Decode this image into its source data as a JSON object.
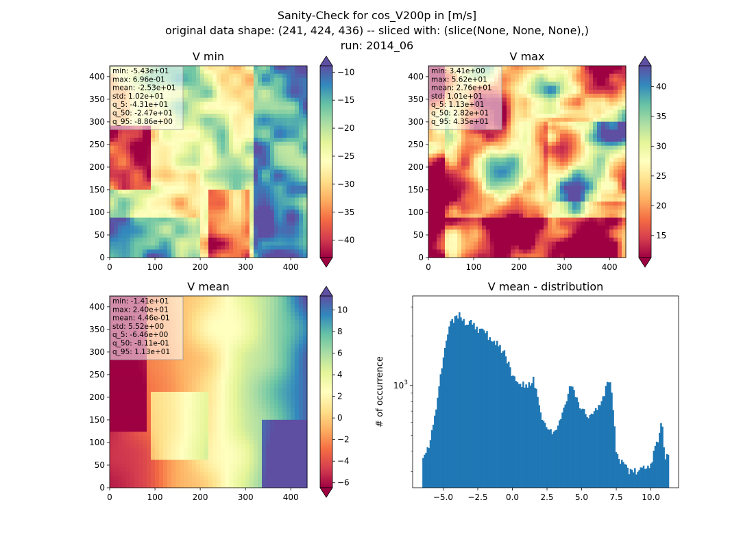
{
  "suptitle": {
    "line1": "Sanity-Check for cos_V200p in [m/s]",
    "line2": "original data shape: (241, 424, 436) -- sliced with: (slice(None, None, None),)",
    "line3": "run: 2014_06"
  },
  "chart_data": [
    {
      "type": "heatmap",
      "title": "V min",
      "x_ticks": [
        0,
        100,
        200,
        300,
        400
      ],
      "y_ticks": [
        0,
        50,
        100,
        150,
        200,
        250,
        300,
        350,
        400
      ],
      "xlim": [
        0,
        436
      ],
      "ylim": [
        0,
        424
      ],
      "colormap": "Spectral",
      "colorbar": {
        "min": -43.1,
        "max": -8.86,
        "ticks": [
          -40,
          -35,
          -30,
          -25,
          -20,
          -15,
          -10
        ],
        "extend": "both"
      },
      "stats": [
        "min: -5.43e+01",
        "max: 6.96e-01",
        "mean: -2.53e+01",
        "std: 1.02e+01",
        "q_5: -4.31e+01",
        "q_50: -2.47e+01",
        "q_95: -8.86e+00"
      ]
    },
    {
      "type": "heatmap",
      "title": "V max",
      "x_ticks": [
        0,
        100,
        200,
        300,
        400
      ],
      "y_ticks": [
        0,
        50,
        100,
        150,
        200,
        250,
        300,
        350,
        400
      ],
      "xlim": [
        0,
        436
      ],
      "ylim": [
        0,
        424
      ],
      "colormap": "Spectral",
      "colorbar": {
        "min": 11.3,
        "max": 43.5,
        "ticks": [
          15,
          20,
          25,
          30,
          35,
          40
        ],
        "extend": "both"
      },
      "stats": [
        "min: 3.41e+00",
        "max: 5.62e+01",
        "mean: 2.76e+01",
        "std: 1.01e+01",
        "q_5: 1.13e+01",
        "q_50: 2.82e+01",
        "q_95: 4.35e+01"
      ]
    },
    {
      "type": "heatmap",
      "title": "V mean",
      "x_ticks": [
        0,
        100,
        200,
        300,
        400
      ],
      "y_ticks": [
        0,
        50,
        100,
        150,
        200,
        250,
        300,
        350,
        400
      ],
      "xlim": [
        0,
        436
      ],
      "ylim": [
        0,
        424
      ],
      "colormap": "Spectral",
      "colorbar": {
        "min": -6.46,
        "max": 11.3,
        "ticks": [
          -6,
          -4,
          -2,
          0,
          2,
          4,
          6,
          8,
          10
        ],
        "extend": "both"
      },
      "stats": [
        "min: -1.41e+01",
        "max: 2.40e+01",
        "mean: 4.46e-01",
        "std: 5.52e+00",
        "q_5: -6.46e+00",
        "q_50: -8.11e-01",
        "q_95: 1.13e+01"
      ]
    },
    {
      "type": "bar",
      "title": "V mean - distribution",
      "ylabel": "# of occurrence",
      "yscale": "log",
      "x_ticks": [
        -5.0,
        -2.5,
        0.0,
        2.5,
        5.0,
        7.5,
        10.0
      ],
      "x_tick_labels": [
        "−5.0",
        "−2.5",
        "0.0",
        "2.5",
        "5.0",
        "7.5",
        "10.0"
      ],
      "y_tick_labels": [
        "10^3"
      ],
      "xlim": [
        -7.2,
        12.0
      ],
      "ylim": [
        240,
        3500
      ],
      "color": "#1f77b4",
      "x": [
        -6.5,
        -6.0,
        -5.5,
        -5.0,
        -4.5,
        -4.0,
        -3.75,
        -3.5,
        -3.0,
        -2.5,
        -2.0,
        -1.5,
        -1.0,
        -0.5,
        0.0,
        0.5,
        1.0,
        1.5,
        2.0,
        2.5,
        3.0,
        3.5,
        4.0,
        4.25,
        4.5,
        5.0,
        5.5,
        6.0,
        6.5,
        7.0,
        7.25,
        7.5,
        8.0,
        8.5,
        9.0,
        9.5,
        10.0,
        10.5,
        10.8,
        11.0,
        11.3
      ],
      "y": [
        380,
        430,
        700,
        1500,
        2300,
        2700,
        2600,
        2400,
        2500,
        2200,
        2100,
        1900,
        1800,
        1500,
        1150,
        1050,
        1000,
        1100,
        700,
        540,
        520,
        610,
        900,
        1000,
        860,
        720,
        640,
        720,
        850,
        1100,
        750,
        390,
        330,
        300,
        300,
        310,
        340,
        470,
        600,
        380,
        360
      ]
    }
  ]
}
